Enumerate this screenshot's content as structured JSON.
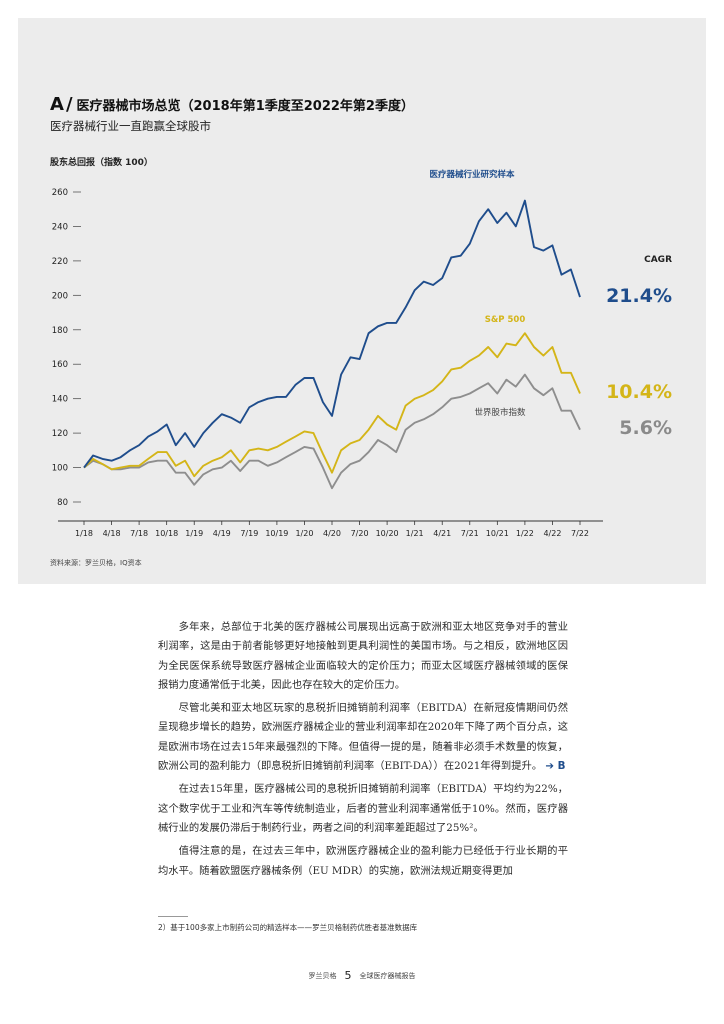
{
  "header": {
    "letter": "A",
    "slash": "/",
    "title": "医疗器械市场总览（2018年第1季度至2022年第2季度）",
    "subtitle": "医疗器械行业一直跑赢全球股市",
    "y_axis_label": "股东总回报（指数 100）"
  },
  "chart_data": {
    "type": "line",
    "ylabel": "股东总回报（指数 100）",
    "ylim": [
      80,
      260
    ],
    "y_ticks": [
      80,
      100,
      120,
      140,
      160,
      180,
      200,
      220,
      240,
      260
    ],
    "x_tick_labels": [
      "1/18",
      "4/18",
      "7/18",
      "10/18",
      "1/19",
      "4/19",
      "7/19",
      "10/19",
      "1/20",
      "4/20",
      "7/20",
      "10/20",
      "1/21",
      "4/21",
      "7/21",
      "10/21",
      "1/22",
      "4/22",
      "7/22"
    ],
    "x_range": [
      0,
      18
    ],
    "cagr_header": "CAGR",
    "series": [
      {
        "name": "医疗器械行业研究样本",
        "color": "#1f4d8c",
        "cagr": "21.4%",
        "points": [
          [
            0,
            100
          ],
          [
            0.33,
            107
          ],
          [
            0.67,
            105
          ],
          [
            1,
            104
          ],
          [
            1.33,
            106
          ],
          [
            1.67,
            110
          ],
          [
            2,
            113
          ],
          [
            2.33,
            118
          ],
          [
            2.67,
            121
          ],
          [
            3,
            125
          ],
          [
            3.33,
            113
          ],
          [
            3.67,
            120
          ],
          [
            4,
            112
          ],
          [
            4.33,
            120
          ],
          [
            4.67,
            126
          ],
          [
            5,
            131
          ],
          [
            5.33,
            129
          ],
          [
            5.67,
            126
          ],
          [
            6,
            135
          ],
          [
            6.33,
            138
          ],
          [
            6.67,
            140
          ],
          [
            7,
            141
          ],
          [
            7.33,
            141
          ],
          [
            7.67,
            148
          ],
          [
            8,
            152
          ],
          [
            8.33,
            152
          ],
          [
            8.67,
            138
          ],
          [
            9,
            130
          ],
          [
            9.33,
            154
          ],
          [
            9.67,
            164
          ],
          [
            10,
            163
          ],
          [
            10.33,
            178
          ],
          [
            10.67,
            182
          ],
          [
            11,
            184
          ],
          [
            11.33,
            184
          ],
          [
            11.67,
            193
          ],
          [
            12,
            203
          ],
          [
            12.33,
            208
          ],
          [
            12.67,
            206
          ],
          [
            13,
            210
          ],
          [
            13.33,
            222
          ],
          [
            13.67,
            223
          ],
          [
            14,
            230
          ],
          [
            14.33,
            243
          ],
          [
            14.67,
            250
          ],
          [
            15,
            242
          ],
          [
            15.33,
            248
          ],
          [
            15.67,
            240
          ],
          [
            16,
            255
          ],
          [
            16.33,
            228
          ],
          [
            16.67,
            226
          ],
          [
            17,
            229
          ],
          [
            17.33,
            212
          ],
          [
            17.67,
            215
          ],
          [
            18,
            199
          ]
        ]
      },
      {
        "name": "S&P 500",
        "color": "#d4b518",
        "cagr": "10.4%",
        "points": [
          [
            0,
            100
          ],
          [
            0.33,
            105
          ],
          [
            0.67,
            102
          ],
          [
            1,
            99
          ],
          [
            1.33,
            100
          ],
          [
            1.67,
            101
          ],
          [
            2,
            101
          ],
          [
            2.33,
            105
          ],
          [
            2.67,
            109
          ],
          [
            3,
            109
          ],
          [
            3.33,
            101
          ],
          [
            3.67,
            104
          ],
          [
            4,
            95
          ],
          [
            4.33,
            101
          ],
          [
            4.67,
            104
          ],
          [
            5,
            106
          ],
          [
            5.33,
            110
          ],
          [
            5.67,
            103
          ],
          [
            6,
            110
          ],
          [
            6.33,
            111
          ],
          [
            6.67,
            110
          ],
          [
            7,
            112
          ],
          [
            7.33,
            115
          ],
          [
            7.67,
            118
          ],
          [
            8,
            121
          ],
          [
            8.33,
            120
          ],
          [
            8.67,
            108
          ],
          [
            9,
            97
          ],
          [
            9.33,
            110
          ],
          [
            9.67,
            114
          ],
          [
            10,
            116
          ],
          [
            10.33,
            122
          ],
          [
            10.67,
            130
          ],
          [
            11,
            125
          ],
          [
            11.33,
            122
          ],
          [
            11.67,
            136
          ],
          [
            12,
            140
          ],
          [
            12.33,
            142
          ],
          [
            12.67,
            145
          ],
          [
            13,
            150
          ],
          [
            13.33,
            157
          ],
          [
            13.67,
            158
          ],
          [
            14,
            162
          ],
          [
            14.33,
            165
          ],
          [
            14.67,
            170
          ],
          [
            15,
            164
          ],
          [
            15.33,
            172
          ],
          [
            15.67,
            171
          ],
          [
            16,
            178
          ],
          [
            16.33,
            170
          ],
          [
            16.67,
            165
          ],
          [
            17,
            170
          ],
          [
            17.33,
            155
          ],
          [
            17.67,
            155
          ],
          [
            18,
            143
          ]
        ]
      },
      {
        "name": "世界股市指数",
        "color": "#8e8e8e",
        "cagr": "5.6%",
        "points": [
          [
            0,
            100
          ],
          [
            0.33,
            104
          ],
          [
            0.67,
            102
          ],
          [
            1,
            99
          ],
          [
            1.33,
            99
          ],
          [
            1.67,
            100
          ],
          [
            2,
            100
          ],
          [
            2.33,
            103
          ],
          [
            2.67,
            104
          ],
          [
            3,
            104
          ],
          [
            3.33,
            97
          ],
          [
            3.67,
            97
          ],
          [
            4,
            90
          ],
          [
            4.33,
            96
          ],
          [
            4.67,
            99
          ],
          [
            5,
            100
          ],
          [
            5.33,
            104
          ],
          [
            5.67,
            98
          ],
          [
            6,
            104
          ],
          [
            6.33,
            104
          ],
          [
            6.67,
            101
          ],
          [
            7,
            103
          ],
          [
            7.33,
            106
          ],
          [
            7.67,
            109
          ],
          [
            8,
            112
          ],
          [
            8.33,
            111
          ],
          [
            8.67,
            100
          ],
          [
            9,
            88
          ],
          [
            9.33,
            97
          ],
          [
            9.67,
            102
          ],
          [
            10,
            104
          ],
          [
            10.33,
            109
          ],
          [
            10.67,
            116
          ],
          [
            11,
            113
          ],
          [
            11.33,
            109
          ],
          [
            11.67,
            122
          ],
          [
            12,
            126
          ],
          [
            12.33,
            128
          ],
          [
            12.67,
            131
          ],
          [
            13,
            135
          ],
          [
            13.33,
            140
          ],
          [
            13.67,
            141
          ],
          [
            14,
            143
          ],
          [
            14.33,
            146
          ],
          [
            14.67,
            149
          ],
          [
            15,
            143
          ],
          [
            15.33,
            151
          ],
          [
            15.67,
            147
          ],
          [
            16,
            154
          ],
          [
            16.33,
            146
          ],
          [
            16.67,
            142
          ],
          [
            17,
            146
          ],
          [
            17.33,
            133
          ],
          [
            17.67,
            133
          ],
          [
            18,
            122
          ]
        ]
      }
    ]
  },
  "source": "资料来源：罗兰贝格，IQ资本",
  "body": {
    "p1": "多年来，总部位于北美的医疗器械公司展现出远高于欧洲和亚太地区竞争对手的营业利润率，这是由于前者能够更好地接触到更具利润性的美国市场。与之相反，欧洲地区因为全民医保系统导致医疗器械企业面临较大的定价压力；而亚太区域医疗器械领域的医保报销力度通常低于北美，因此也存在较大的定价压力。",
    "p2": "尽管北美和亚太地区玩家的息税折旧摊销前利润率（EBITDA）在新冠疫情期间仍然呈现稳步增长的趋势，欧洲医疗器械企业的营业利润率却在2020年下降了两个百分点，这是欧洲市场在过去15年来最强烈的下降。但值得一提的是，随着非必须手术数量的恢复，欧洲公司的盈利能力（即息税折旧摊销前利润率（EBIT-DA））在2021年得到提升。",
    "p2_arrow": "➔ B",
    "p3": "在过去15年里，医疗器械公司的息税折旧摊销前利润率（EBITDA）平均约为22%，这个数字优于工业和汽车等传统制造业，后者的营业利润率通常低于10%。然而，医疗器械行业的发展仍滞后于制药行业，两者之间的利润率差距超过了25%²。",
    "p4": "值得注意的是，在过去三年中，欧洲医疗器械企业的盈利能力已经低于行业长期的平均水平。随着欧盟医疗器械条例（EU MDR）的实施，欧洲法规近期变得更加"
  },
  "footnote": "2）基于100多家上市制药公司的精选样本——罗兰贝格制药优胜者基准数据库",
  "footer": {
    "brand": "罗兰贝格",
    "page": "5",
    "report": "全球医疗器械报告"
  }
}
